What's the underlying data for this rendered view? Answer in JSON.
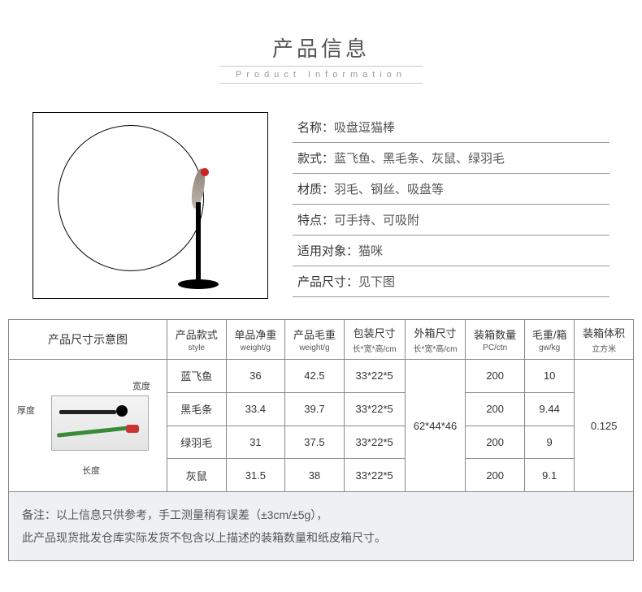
{
  "header": {
    "cn": "产品信息",
    "en": "Product Information"
  },
  "info": [
    {
      "label": "名称：",
      "value": "吸盘逗猫棒"
    },
    {
      "label": "款式：",
      "value": "蓝飞鱼、黑毛条、灰鼠、绿羽毛"
    },
    {
      "label": "材质：",
      "value": "羽毛、钢丝、吸盘等"
    },
    {
      "label": "特点：",
      "value": "可手持、可吸附"
    },
    {
      "label": "适用对象：",
      "value": "猫咪"
    },
    {
      "label": "产品尺寸：",
      "value": "见下图"
    }
  ],
  "table": {
    "diagram_header": "产品尺寸示意图",
    "columns": [
      {
        "cn": "产品款式",
        "en": "style"
      },
      {
        "cn": "单品净重",
        "en": "weight/g"
      },
      {
        "cn": "产品毛重",
        "en": "weight/g"
      },
      {
        "cn": "包装尺寸",
        "en": "长*宽*高/cm"
      },
      {
        "cn": "外箱尺寸",
        "en": "长*宽*高/cm"
      },
      {
        "cn": "装箱数量",
        "en": "PC/ctn"
      },
      {
        "cn": "毛重/箱",
        "en": "gw/kg"
      },
      {
        "cn": "装箱体积",
        "en": "立方米"
      }
    ],
    "rows": [
      {
        "style": "蓝飞鱼",
        "net": "36",
        "gross": "42.5",
        "pack": "33*22*5",
        "qty": "200",
        "gw": "10"
      },
      {
        "style": "黑毛条",
        "net": "33.4",
        "gross": "39.7",
        "pack": "33*22*5",
        "qty": "200",
        "gw": "9.44"
      },
      {
        "style": "绿羽毛",
        "net": "31",
        "gross": "37.5",
        "pack": "33*22*5",
        "qty": "200",
        "gw": "9"
      },
      {
        "style": "灰鼠",
        "net": "31.5",
        "gross": "38",
        "pack": "33*22*5",
        "qty": "200",
        "gw": "9.1"
      }
    ],
    "carton": "62*44*46",
    "volume": "0.125",
    "diagram_labels": {
      "thickness": "厚度",
      "width": "宽度",
      "length": "长度"
    }
  },
  "note": {
    "line1": "备注：以上信息只供参考，手工测量稍有误差（±3cm/±5g），",
    "line2": "此产品现货批发仓库实际发货不包含以上描述的装箱数量和纸皮箱尺寸。"
  },
  "colors": {
    "border": "#888",
    "note_bg": "#eef1f4",
    "text": "#333",
    "subtext": "#555"
  }
}
